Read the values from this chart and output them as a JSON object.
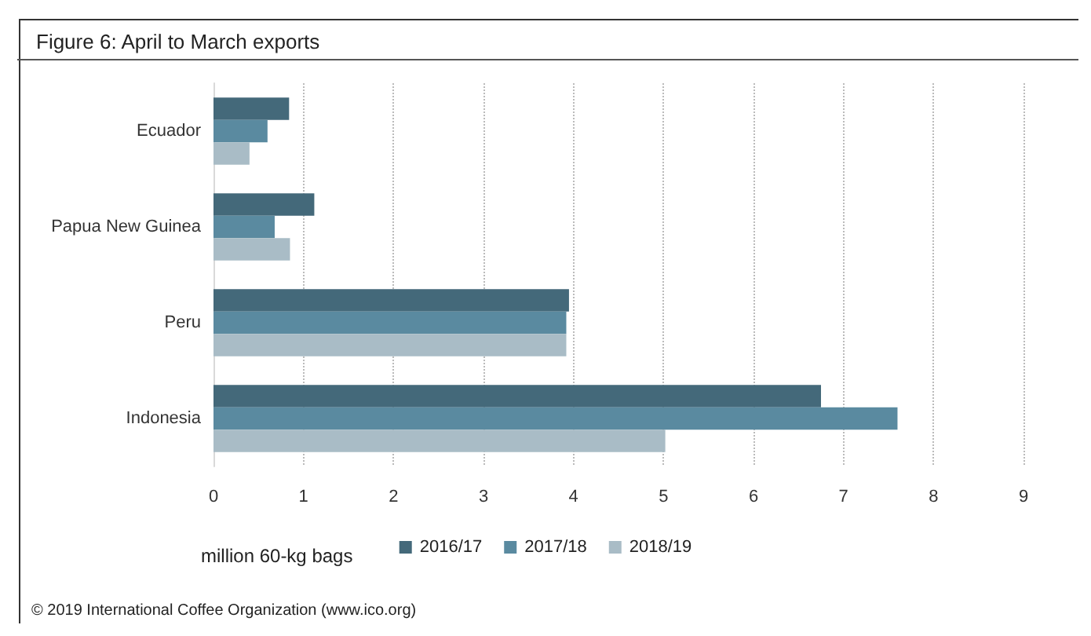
{
  "chart_data": {
    "type": "bar",
    "orientation": "horizontal",
    "title": "Figure 6: April to March exports",
    "xlabel": "million 60-kg bags",
    "categories": [
      "Ecuador",
      "Papua New Guinea",
      "Peru",
      "Indonesia"
    ],
    "series": [
      {
        "name": "2016/17",
        "color": "#44697a",
        "values": [
          0.84,
          1.12,
          3.95,
          6.75
        ]
      },
      {
        "name": "2017/18",
        "color": "#5a8aa0",
        "values": [
          0.6,
          0.68,
          3.92,
          7.6
        ]
      },
      {
        "name": "2018/19",
        "color": "#a9bcc6",
        "values": [
          0.4,
          0.85,
          3.92,
          5.02
        ]
      }
    ],
    "xlim": [
      0,
      9
    ],
    "xticks": [
      0,
      1,
      2,
      3,
      4,
      5,
      6,
      7,
      8,
      9
    ],
    "grid": "x",
    "legend": "bottom",
    "annotations": [
      "© 2019 International Coffee Organization (www.ico.org)"
    ]
  }
}
